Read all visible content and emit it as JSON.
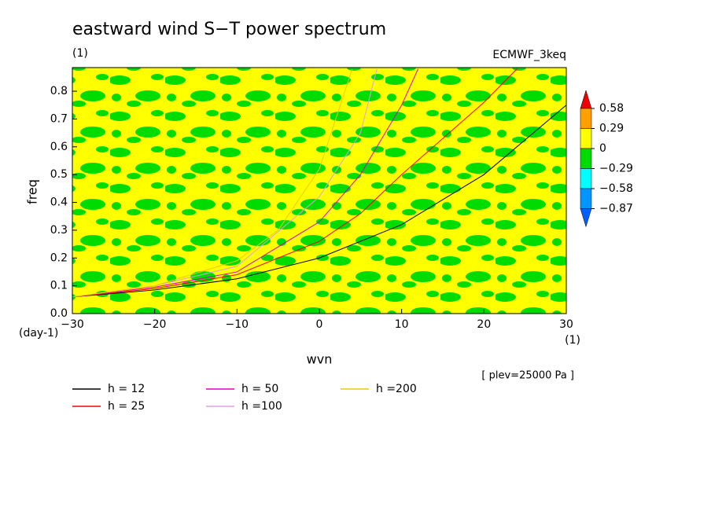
{
  "chart_data": {
    "type": "line",
    "title": "eastward wind S−T power spectrum",
    "subtitle": "(1)",
    "source_label": "ECMWF_3keq",
    "x_label": "wvn",
    "y_label": "freq",
    "x_unit": "(1)",
    "y_unit": "(day-1)",
    "annotation": "[ plev=25000 Pa ]",
    "xlim": [
      -30,
      30
    ],
    "ylim": [
      0,
      0.885
    ],
    "xticks": [
      -30,
      -20,
      -10,
      0,
      10,
      20,
      30
    ],
    "yticks": [
      {
        "value": 0,
        "label": "0.0"
      },
      0.1,
      0.2,
      0.3,
      0.4,
      0.5,
      0.6,
      0.7,
      0.8
    ],
    "series": [
      {
        "name": "h = 12",
        "color": "#000000",
        "x": [
          -30,
          -20,
          -10,
          0,
          10,
          20,
          30
        ],
        "values": [
          0.06,
          0.085,
          0.125,
          0.2,
          0.32,
          0.5,
          0.75
        ]
      },
      {
        "name": "h = 25",
        "color": "#ff0000",
        "x": [
          -30,
          -20,
          -10,
          0,
          5,
          10,
          20,
          24
        ],
        "values": [
          0.06,
          0.09,
          0.14,
          0.26,
          0.36,
          0.5,
          0.76,
          0.88
        ]
      },
      {
        "name": "h = 50",
        "color": "#e000c0",
        "x": [
          -30,
          -20,
          -10,
          0,
          5,
          10,
          12
        ],
        "values": [
          0.06,
          0.095,
          0.15,
          0.33,
          0.5,
          0.75,
          0.88
        ]
      },
      {
        "name": "h =100",
        "color": "#e0a0e0",
        "x": [
          -30,
          -20,
          -10,
          0,
          5,
          7
        ],
        "values": [
          0.06,
          0.1,
          0.17,
          0.42,
          0.65,
          0.88
        ]
      },
      {
        "name": "h =200",
        "color": "#f0c800",
        "x": [
          -30,
          -20,
          -10,
          -5,
          0,
          4
        ],
        "values": [
          0.06,
          0.1,
          0.19,
          0.3,
          0.52,
          0.88
        ]
      }
    ],
    "colorbar": {
      "levels": [
        0.58,
        0.29,
        0,
        -0.29,
        -0.58,
        -0.87
      ],
      "colors": [
        "#f00000",
        "#ffa000",
        "#ffff00",
        "#00dc00",
        "#00ffff",
        "#0096ff",
        "#0060ff"
      ]
    }
  }
}
